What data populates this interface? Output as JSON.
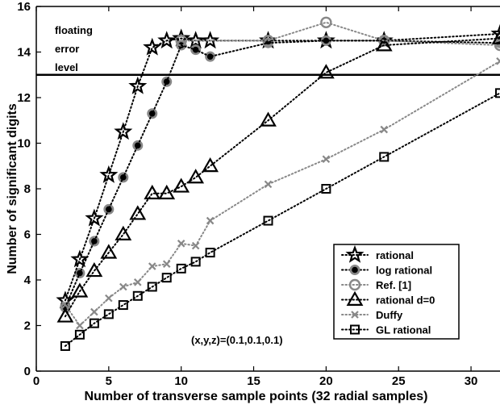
{
  "chart_data": {
    "type": "line",
    "xlabel": "Number of transverse sample points (32 radial samples)",
    "ylabel": "Number of significant digits",
    "xlim": [
      0,
      32
    ],
    "ylim": [
      0,
      16
    ],
    "xticks": [
      0,
      5,
      10,
      15,
      20,
      25,
      30
    ],
    "yticks": [
      0,
      2,
      4,
      6,
      8,
      10,
      12,
      14,
      16
    ],
    "grid": false,
    "legend_position": "bottom-right",
    "reference_line": {
      "y": 13,
      "label_lines": [
        "floating",
        "error",
        "level"
      ]
    },
    "annotation": "(x,y,z)=(0.1,0.1,0.1)",
    "series": [
      {
        "name": "rational",
        "marker": "star",
        "color": "#000000",
        "x": [
          2,
          3,
          4,
          5,
          6,
          7,
          8,
          9,
          10,
          11,
          12,
          16,
          20,
          24,
          32
        ],
        "y": [
          3.1,
          4.9,
          6.7,
          8.6,
          10.5,
          12.5,
          14.2,
          14.5,
          14.6,
          14.5,
          14.5,
          14.5,
          14.5,
          14.5,
          14.8
        ]
      },
      {
        "name": "log rational",
        "marker": "dot",
        "color": "#000000",
        "x": [
          2,
          3,
          4,
          5,
          6,
          7,
          8,
          9,
          10,
          11,
          12,
          16,
          20,
          24,
          32
        ],
        "y": [
          2.8,
          4.3,
          5.7,
          7.1,
          8.5,
          9.9,
          11.3,
          12.7,
          14.3,
          14.1,
          13.8,
          14.4,
          14.5,
          14.5,
          14.4
        ]
      },
      {
        "name": "Ref. [1]",
        "marker": "circle",
        "color": "#888888",
        "x": [
          10,
          16,
          20,
          24,
          32
        ],
        "y": [
          14.5,
          14.5,
          15.3,
          14.5,
          14.3
        ]
      },
      {
        "name": "rational d=0",
        "marker": "triangle",
        "color": "#000000",
        "x": [
          2,
          3,
          4,
          5,
          6,
          7,
          8,
          9,
          10,
          11,
          12,
          16,
          20,
          24,
          32
        ],
        "y": [
          2.4,
          3.5,
          4.4,
          5.2,
          6.0,
          6.9,
          7.8,
          7.8,
          8.1,
          8.5,
          9.0,
          11.0,
          13.1,
          14.3,
          14.6
        ]
      },
      {
        "name": "Duffy",
        "marker": "x",
        "color": "#888888",
        "x": [
          2,
          3,
          4,
          5,
          6,
          7,
          8,
          9,
          10,
          11,
          12,
          16,
          20,
          24,
          32
        ],
        "y": [
          2.9,
          2.0,
          2.6,
          3.2,
          3.7,
          3.9,
          4.6,
          4.7,
          5.6,
          5.5,
          6.6,
          8.2,
          9.3,
          10.6,
          13.6
        ]
      },
      {
        "name": "GL rational",
        "marker": "square",
        "color": "#000000",
        "x": [
          2,
          3,
          4,
          5,
          6,
          7,
          8,
          9,
          10,
          11,
          12,
          16,
          20,
          24,
          32
        ],
        "y": [
          1.1,
          1.6,
          2.1,
          2.5,
          2.9,
          3.3,
          3.7,
          4.1,
          4.5,
          4.8,
          5.2,
          6.6,
          8.0,
          9.4,
          12.2
        ]
      }
    ]
  }
}
